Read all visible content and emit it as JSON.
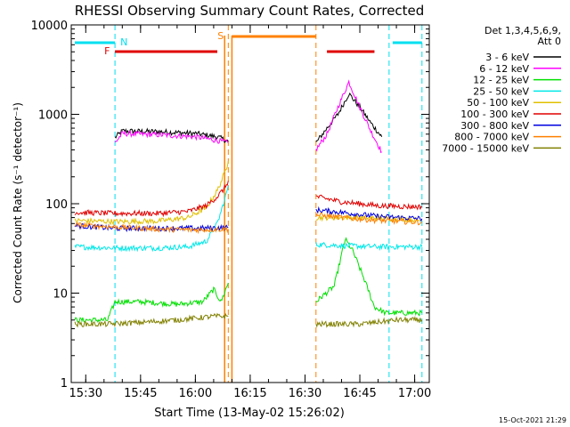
{
  "chart_data": {
    "type": "line",
    "title": "RHESSI Observing Summary Count Rates, Corrected",
    "xlabel": "Start Time (13-May-02 15:26:02)",
    "ylabel": "Corrected Count Rate (s⁻¹ detector⁻¹)",
    "yscale": "log",
    "ylim": [
      1,
      10000
    ],
    "xlim": [
      "15:26:02",
      "17:04"
    ],
    "x_ticks": [
      "15:30",
      "15:45",
      "16:00",
      "16:15",
      "16:30",
      "16:45",
      "17:00"
    ],
    "y_ticks": [
      "1",
      "10",
      "100",
      "1000",
      "10000"
    ],
    "grid": false,
    "legend": {
      "placement": "right",
      "header_line1": "Det 1,3,4,5,6,9,",
      "header_line2": "Att 0"
    },
    "series": [
      {
        "name": "3 - 6 keV",
        "color": "#000000",
        "segments": [
          [
            [
              "15:38",
              550
            ],
            [
              "15:40",
              650
            ],
            [
              "15:50",
              640
            ],
            [
              "16:00",
              610
            ],
            [
              "16:06",
              560
            ],
            [
              "16:09",
              500
            ]
          ],
          [
            [
              "16:33",
              480
            ],
            [
              "16:36",
              700
            ],
            [
              "16:39",
              1000
            ],
            [
              "16:42",
              1700
            ],
            [
              "16:45",
              1200
            ],
            [
              "16:48",
              800
            ],
            [
              "16:51",
              560
            ]
          ]
        ]
      },
      {
        "name": "6 - 12 keV",
        "color": "#ff00ff",
        "segments": [
          [
            [
              "15:38",
              480
            ],
            [
              "15:40",
              610
            ],
            [
              "15:50",
              590
            ],
            [
              "16:00",
              560
            ],
            [
              "16:06",
              510
            ],
            [
              "16:09",
              480
            ]
          ],
          [
            [
              "16:33",
              400
            ],
            [
              "16:36",
              600
            ],
            [
              "16:39",
              1200
            ],
            [
              "16:42",
              2300
            ],
            [
              "16:45",
              1200
            ],
            [
              "16:48",
              650
            ],
            [
              "16:51",
              380
            ]
          ]
        ]
      },
      {
        "name": "12 - 25 keV",
        "color": "#00e000",
        "segments": [
          [
            [
              "15:27",
              5
            ],
            [
              "15:36",
              5
            ],
            [
              "15:38",
              8
            ],
            [
              "15:45",
              8
            ],
            [
              "15:55",
              7.5
            ],
            [
              "16:02",
              8
            ],
            [
              "16:05",
              11
            ],
            [
              "16:07",
              8
            ],
            [
              "16:09",
              13
            ]
          ],
          [
            [
              "16:33",
              8
            ],
            [
              "16:38",
              12
            ],
            [
              "16:41",
              40
            ],
            [
              "16:43",
              30
            ],
            [
              "16:46",
              15
            ],
            [
              "16:49",
              7
            ],
            [
              "16:52",
              6
            ],
            [
              "17:02",
              6
            ]
          ]
        ]
      },
      {
        "name": "25 - 50 keV",
        "color": "#00e8e8",
        "segments": [
          [
            [
              "15:27",
              33
            ],
            [
              "15:38",
              32
            ],
            [
              "15:50",
              32
            ],
            [
              "15:58",
              33
            ],
            [
              "16:03",
              38
            ],
            [
              "16:06",
              60
            ],
            [
              "16:08",
              110
            ],
            [
              "16:09",
              160
            ]
          ],
          [
            [
              "16:33",
              35
            ],
            [
              "16:40",
              34
            ],
            [
              "16:50",
              33
            ],
            [
              "17:02",
              33
            ]
          ]
        ]
      },
      {
        "name": "50 - 100 keV",
        "color": "#e0c000",
        "segments": [
          [
            [
              "15:27",
              65
            ],
            [
              "15:38",
              63
            ],
            [
              "15:50",
              64
            ],
            [
              "15:58",
              70
            ],
            [
              "16:03",
              90
            ],
            [
              "16:06",
              140
            ],
            [
              "16:08",
              220
            ],
            [
              "16:09",
              300
            ]
          ],
          [
            [
              "16:33",
              70
            ],
            [
              "16:45",
              70
            ],
            [
              "16:55",
              68
            ],
            [
              "17:02",
              65
            ]
          ]
        ]
      },
      {
        "name": "100 - 300 keV",
        "color": "#e00000",
        "segments": [
          [
            [
              "15:27",
              80
            ],
            [
              "15:38",
              78
            ],
            [
              "15:50",
              78
            ],
            [
              "15:58",
              82
            ],
            [
              "16:03",
              95
            ],
            [
              "16:06",
              120
            ],
            [
              "16:08",
              150
            ],
            [
              "16:09",
              180
            ]
          ],
          [
            [
              "16:33",
              120
            ],
            [
              "16:40",
              105
            ],
            [
              "16:50",
              95
            ],
            [
              "17:02",
              92
            ]
          ]
        ]
      },
      {
        "name": "300 - 800 keV",
        "color": "#0000e0",
        "segments": [
          [
            [
              "15:27",
              57
            ],
            [
              "15:38",
              53
            ],
            [
              "15:50",
              53
            ],
            [
              "16:00",
              53
            ],
            [
              "16:09",
              54
            ]
          ],
          [
            [
              "16:33",
              85
            ],
            [
              "16:40",
              80
            ],
            [
              "16:50",
              72
            ],
            [
              "17:02",
              68
            ]
          ]
        ]
      },
      {
        "name": "800 - 7000 keV",
        "color": "#ff8000",
        "segments": [
          [
            [
              "15:27",
              58
            ],
            [
              "15:38",
              55
            ],
            [
              "15:50",
              52
            ],
            [
              "16:00",
              51
            ],
            [
              "16:09",
              52
            ]
          ],
          [
            [
              "16:33",
              75
            ],
            [
              "16:40",
              70
            ],
            [
              "16:50",
              65
            ],
            [
              "17:02",
              62
            ]
          ]
        ]
      },
      {
        "name": "7000 - 15000 keV",
        "color": "#808000",
        "segments": [
          [
            [
              "15:27",
              4.5
            ],
            [
              "15:36",
              4.5
            ],
            [
              "15:45",
              4.7
            ],
            [
              "15:55",
              5
            ],
            [
              "16:05",
              5.5
            ],
            [
              "16:09",
              5.5
            ]
          ],
          [
            [
              "16:33",
              4.5
            ],
            [
              "16:45",
              4.5
            ],
            [
              "16:55",
              5
            ],
            [
              "17:02",
              5
            ]
          ]
        ]
      }
    ],
    "flags": [
      {
        "label": "N",
        "color": "#00e0f0",
        "style": "dashed",
        "times": [
          "15:38",
          "16:53",
          "17:02"
        ]
      },
      {
        "label": "S",
        "color": "#ff8000",
        "style": "dashed",
        "times": [
          "16:09",
          "16:33"
        ]
      },
      {
        "label": "F",
        "color": "#e00000",
        "style": "bar"
      }
    ],
    "annotations": {
      "timestamp": "15-Oct-2021 21:29"
    }
  }
}
